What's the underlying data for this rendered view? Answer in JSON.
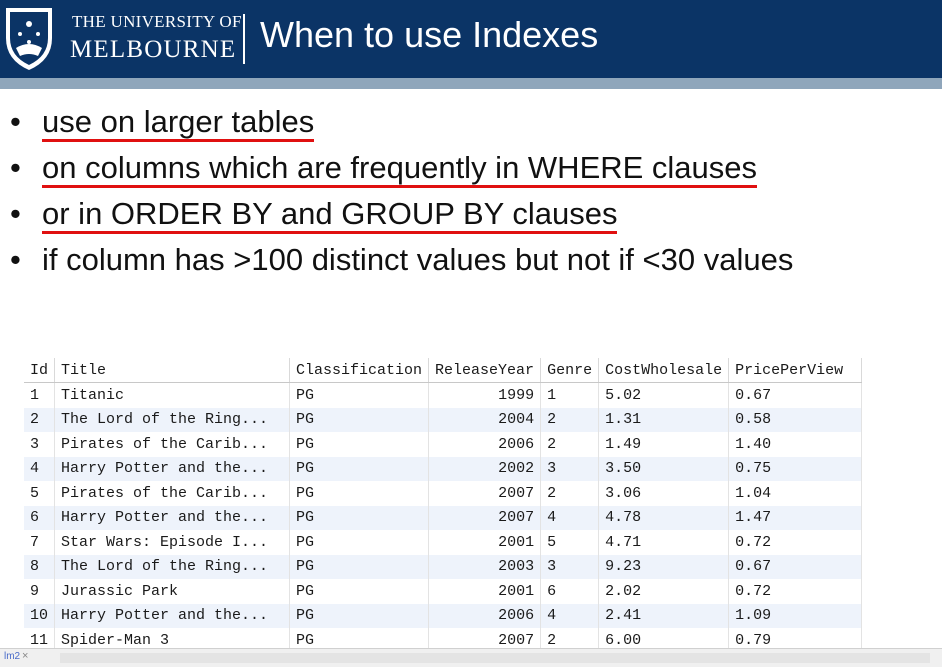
{
  "header": {
    "university_line1": "THE UNIVERSITY OF",
    "university_line2": "MELBOURNE",
    "slide_title": "When to use Indexes"
  },
  "bullets": [
    {
      "text": "use on larger tables",
      "underlined": true
    },
    {
      "text": "on columns which are frequently in WHERE clauses",
      "underlined": true
    },
    {
      "text": "or in ORDER BY and GROUP BY clauses",
      "underlined": true
    },
    {
      "text": "if column has >100 distinct values but not if <30 values",
      "underlined": false
    }
  ],
  "bullet_symbol": "•",
  "table": {
    "columns": [
      "Id",
      "Title",
      "Classification",
      "ReleaseYear",
      "Genre",
      "CostWholesale",
      "PricePerView"
    ],
    "rows": [
      [
        "1",
        "Titanic",
        "PG",
        "1999",
        "1",
        "5.02",
        "0.67"
      ],
      [
        "2",
        "The Lord of the Ring...",
        "PG",
        "2004",
        "2",
        "1.31",
        "0.58"
      ],
      [
        "3",
        "Pirates of the Carib...",
        "PG",
        "2006",
        "2",
        "1.49",
        "1.40"
      ],
      [
        "4",
        "Harry Potter and the...",
        "PG",
        "2002",
        "3",
        "3.50",
        "0.75"
      ],
      [
        "5",
        "Pirates of the Carib...",
        "PG",
        "2007",
        "2",
        "3.06",
        "1.04"
      ],
      [
        "6",
        "Harry Potter and the...",
        "PG",
        "2007",
        "4",
        "4.78",
        "1.47"
      ],
      [
        "7",
        "Star Wars: Episode I...",
        "PG",
        "2001",
        "5",
        "4.71",
        "0.72"
      ],
      [
        "8",
        "The Lord of the Ring...",
        "PG",
        "2003",
        "3",
        "9.23",
        "0.67"
      ],
      [
        "9",
        "Jurassic Park",
        "PG",
        "2001",
        "6",
        "2.02",
        "0.72"
      ],
      [
        "10",
        "Harry Potter and the...",
        "PG",
        "2006",
        "4",
        "2.41",
        "1.09"
      ],
      [
        "11",
        "Spider-Man 3",
        "PG",
        "2007",
        "2",
        "6.00",
        "0.79"
      ]
    ]
  },
  "status_tab": {
    "label": "lm2",
    "close": "×"
  },
  "colors": {
    "header_bg": "#0b3466",
    "header_rule": "#8fa6bb",
    "underline": "#e01010",
    "alt_row": "#eef3fb"
  },
  "icons": {
    "crest": "university-crest-logo"
  }
}
